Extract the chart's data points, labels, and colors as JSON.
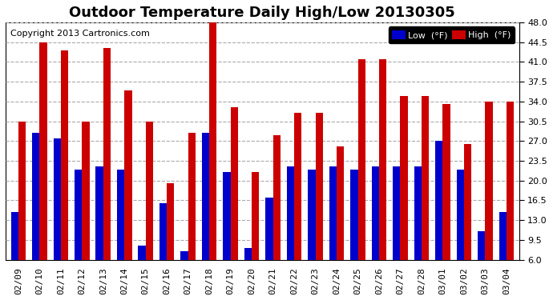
{
  "title": "Outdoor Temperature Daily High/Low 20130305",
  "copyright": "Copyright 2013 Cartronics.com",
  "legend_low_label": "Low  (°F)",
  "legend_high_label": "High  (°F)",
  "dates": [
    "02/09",
    "02/10",
    "02/11",
    "02/12",
    "02/13",
    "02/14",
    "02/15",
    "02/16",
    "02/17",
    "02/18",
    "02/19",
    "02/20",
    "02/21",
    "02/22",
    "02/23",
    "02/24",
    "02/25",
    "02/26",
    "02/27",
    "02/28",
    "03/01",
    "03/02",
    "03/03",
    "03/04"
  ],
  "low": [
    14.5,
    28.5,
    27.5,
    22.0,
    22.5,
    22.0,
    8.5,
    16.0,
    7.5,
    28.5,
    21.5,
    8.0,
    17.0,
    22.5,
    22.0,
    22.5,
    22.0,
    22.5,
    22.5,
    22.5,
    27.0,
    22.0,
    11.0,
    14.5
  ],
  "high": [
    30.5,
    44.5,
    43.0,
    30.5,
    43.5,
    36.0,
    30.5,
    19.5,
    28.5,
    48.0,
    33.0,
    21.5,
    28.0,
    32.0,
    32.0,
    26.0,
    41.5,
    41.5,
    35.0,
    35.0,
    33.5,
    26.5,
    34.0,
    34.0
  ],
  "ylim": [
    6.0,
    48.0
  ],
  "yticks": [
    6.0,
    9.5,
    13.0,
    16.5,
    20.0,
    23.5,
    27.0,
    30.5,
    34.0,
    37.5,
    41.0,
    44.5,
    48.0
  ],
  "background_color": "#ffffff",
  "plot_bg_color": "#ffffff",
  "bar_color_low": "#0000cc",
  "bar_color_high": "#cc0000",
  "grid_color": "#aaaaaa",
  "title_fontsize": 13,
  "copyright_fontsize": 8,
  "tick_fontsize": 8
}
